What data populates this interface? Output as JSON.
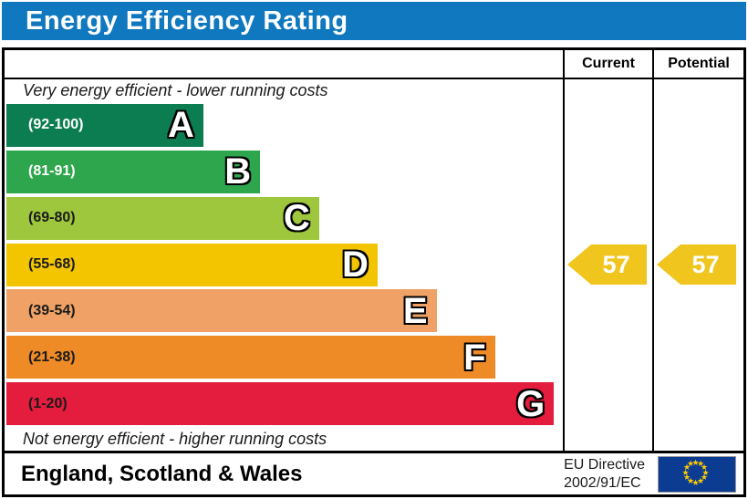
{
  "title": "Energy Efficiency Rating",
  "columns": {
    "current": "Current",
    "potential": "Potential"
  },
  "captions": {
    "top": "Very energy efficient - lower running costs",
    "bottom": "Not energy efficient - higher running costs"
  },
  "footer": {
    "region": "England, Scotland & Wales",
    "directive_line1": "EU Directive",
    "directive_line2": "2002/91/EC"
  },
  "colors": {
    "header_background": "#0f78be",
    "border": "#000000",
    "arrow": "#efc51e",
    "flag_blue": "#0b3c91",
    "flag_stars": "#ffcc00"
  },
  "chart_data": {
    "type": "bar",
    "title": "Energy Efficiency Rating",
    "xlabel": "",
    "ylabel": "",
    "axis_range": [
      1,
      100
    ],
    "grid": false,
    "legend_position": "none",
    "bands": [
      {
        "letter": "A",
        "range_label": "(92-100)",
        "min": 92,
        "max": 100,
        "color": "#0c7d51",
        "label_color": "#ffffff",
        "width_pct": 35.4
      },
      {
        "letter": "B",
        "range_label": "(81-91)",
        "min": 81,
        "max": 91,
        "color": "#2ea64d",
        "label_color": "#ffffff",
        "width_pct": 45.6
      },
      {
        "letter": "C",
        "range_label": "(69-80)",
        "min": 69,
        "max": 80,
        "color": "#9ec73d",
        "label_color": "#1a1a1a",
        "width_pct": 56.2
      },
      {
        "letter": "D",
        "range_label": "(55-68)",
        "min": 55,
        "max": 68,
        "color": "#f2c500",
        "label_color": "#1a1a1a",
        "width_pct": 66.7
      },
      {
        "letter": "E",
        "range_label": "(39-54)",
        "min": 39,
        "max": 54,
        "color": "#f0a266",
        "label_color": "#1a1a1a",
        "width_pct": 77.3
      },
      {
        "letter": "F",
        "range_label": "(21-38)",
        "min": 21,
        "max": 38,
        "color": "#ef8b27",
        "label_color": "#1a1a1a",
        "width_pct": 87.8
      },
      {
        "letter": "G",
        "range_label": "(1-20)",
        "min": 1,
        "max": 20,
        "color": "#e41c3d",
        "label_color": "#1a1a1a",
        "width_pct": 98.4
      }
    ],
    "current": {
      "value": 57,
      "band": "D",
      "arrow_color": "#efc51e"
    },
    "potential": {
      "value": 57,
      "band": "D",
      "arrow_color": "#efc51e"
    }
  }
}
